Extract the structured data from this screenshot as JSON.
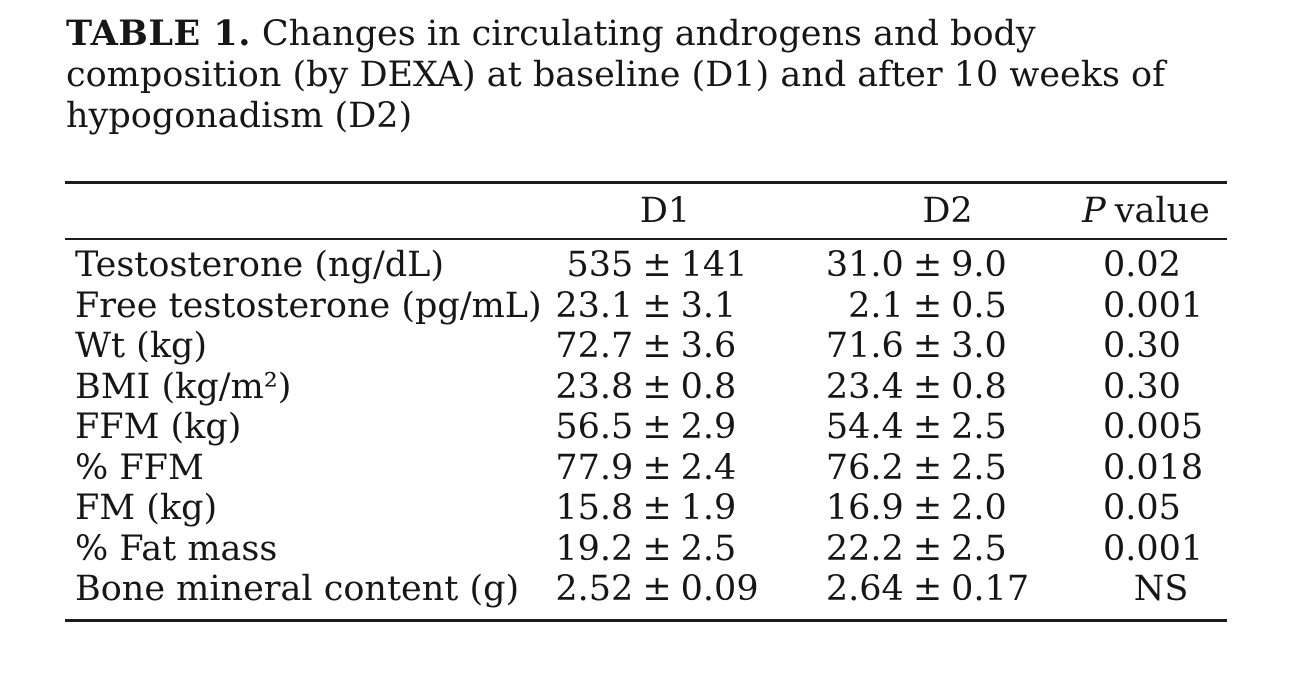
{
  "title": {
    "label": "TABLE 1.",
    "line1": "Changes in circulating androgens and body",
    "line2": "composition (by DEXA) at baseline (D1) and after 10 weeks of",
    "line3": "hypogonadism (D2)"
  },
  "table": {
    "plus_minus": "±",
    "headers": {
      "d1": "D1",
      "d2": "D2",
      "p_italic": "P",
      "p_rest": "value"
    },
    "rows": [
      {
        "label": "Testosterone (ng/dL)",
        "d1_mean": "535",
        "d1_sd": "141",
        "d2_mean": "31.0",
        "d2_sd": "9.0",
        "p": "0.02"
      },
      {
        "label": "Free testosterone (pg/mL)",
        "d1_mean": "23.1",
        "d1_sd": "3.1",
        "d2_mean": "2.1",
        "d2_sd": "0.5",
        "p": "0.001"
      },
      {
        "label": "Wt (kg)",
        "d1_mean": "72.7",
        "d1_sd": "3.6",
        "d2_mean": "71.6",
        "d2_sd": "3.0",
        "p": "0.30"
      },
      {
        "label": "BMI (kg/m²)",
        "d1_mean": "23.8",
        "d1_sd": "0.8",
        "d2_mean": "23.4",
        "d2_sd": "0.8",
        "p": "0.30"
      },
      {
        "label": "FFM (kg)",
        "d1_mean": "56.5",
        "d1_sd": "2.9",
        "d2_mean": "54.4",
        "d2_sd": "2.5",
        "p": "0.005"
      },
      {
        "label": "% FFM",
        "d1_mean": "77.9",
        "d1_sd": "2.4",
        "d2_mean": "76.2",
        "d2_sd": "2.5",
        "p": "0.018"
      },
      {
        "label": "FM (kg)",
        "d1_mean": "15.8",
        "d1_sd": "1.9",
        "d2_mean": "16.9",
        "d2_sd": "2.0",
        "p": "0.05"
      },
      {
        "label": "% Fat mass",
        "d1_mean": "19.2",
        "d1_sd": "2.5",
        "d2_mean": "22.2",
        "d2_sd": "2.5",
        "p": "0.001"
      },
      {
        "label": "Bone mineral content (g)",
        "d1_mean": "2.52",
        "d1_sd": "0.09",
        "d2_mean": "2.64",
        "d2_sd": "0.17",
        "p": "NS"
      }
    ]
  }
}
